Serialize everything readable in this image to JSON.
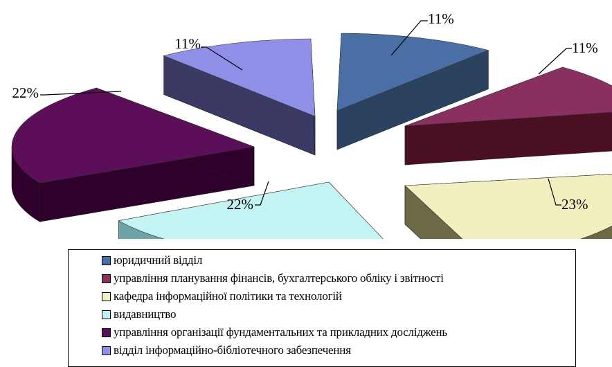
{
  "chart_data": {
    "type": "pie",
    "title": "",
    "legend_position": "bottom",
    "series": [
      {
        "name": "юридичний відділ",
        "value": 11,
        "label": "11%",
        "color": "#4a6fa5",
        "side": "#2b4260"
      },
      {
        "name": "управління планування фінансів, бухгалтерського обліку і звітності",
        "value": 11,
        "label": "11%",
        "color": "#8a3060",
        "side": "#4a0f22"
      },
      {
        "name": "кафедра інформаційної політики та технологій",
        "value": 23,
        "label": "23%",
        "color": "#f2f0c0",
        "side": "#6b6a44"
      },
      {
        "name": "видавництво",
        "value": 22,
        "label": "22%",
        "color": "#c4f3f3",
        "side": "#6fa2a6"
      },
      {
        "name": "управління організації фундаментальних та прикладних досліджень",
        "value": 22,
        "label": "22%",
        "color": "#5c0f58",
        "side": "#2e002b"
      },
      {
        "name": "відділ інформаційно-бібліотечного забезпечення",
        "value": 11,
        "label": "11%",
        "color": "#8f8fe8",
        "side": "#3a3a64"
      }
    ]
  }
}
